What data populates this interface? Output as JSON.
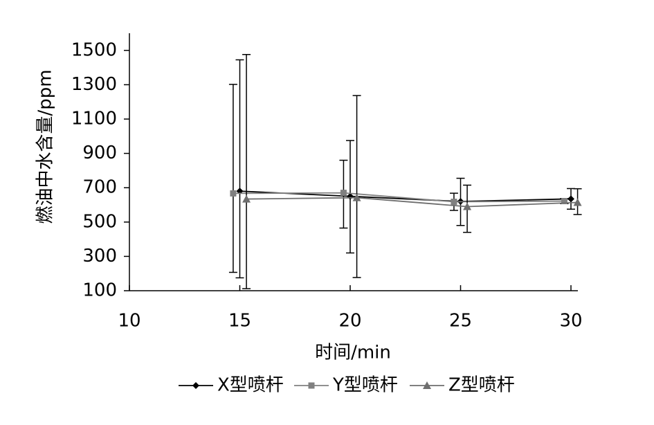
{
  "chart_data": {
    "type": "line",
    "x_label": "时间/min",
    "y_label": "燃油中水含量/ppm",
    "xlim": [
      10,
      30
    ],
    "xticks": [
      10,
      15,
      20,
      25,
      30
    ],
    "ylim": [
      100,
      1600
    ],
    "yticks": [
      100,
      300,
      500,
      700,
      900,
      1100,
      1300,
      1500
    ],
    "legend": "bottom",
    "series": [
      {
        "name": "X型喷杆",
        "color": "#000000",
        "marker": "diamond",
        "x": [
          15,
          20,
          25,
          30
        ],
        "values": [
          680,
          650,
          620,
          635
        ],
        "err_plus": [
          765,
          325,
          135,
          60
        ],
        "err_minus": [
          505,
          330,
          140,
          60
        ]
      },
      {
        "name": "Y型喷杆",
        "color": "#808080",
        "marker": "square",
        "x": [
          14.7,
          19.7,
          24.7,
          29.7
        ],
        "values": [
          667,
          670,
          618,
          622
        ],
        "err_plus": [
          635,
          190,
          50,
          15
        ],
        "err_minus": [
          460,
          205,
          50,
          15
        ]
      },
      {
        "name": "Z型喷杆",
        "color": "#6e6e6e",
        "marker": "triangle",
        "x": [
          15.3,
          20.3,
          25.3,
          30.3
        ],
        "values": [
          634,
          642,
          590,
          614
        ],
        "err_plus": [
          842,
          595,
          125,
          80
        ],
        "err_minus": [
          522,
          465,
          150,
          70
        ]
      }
    ]
  }
}
